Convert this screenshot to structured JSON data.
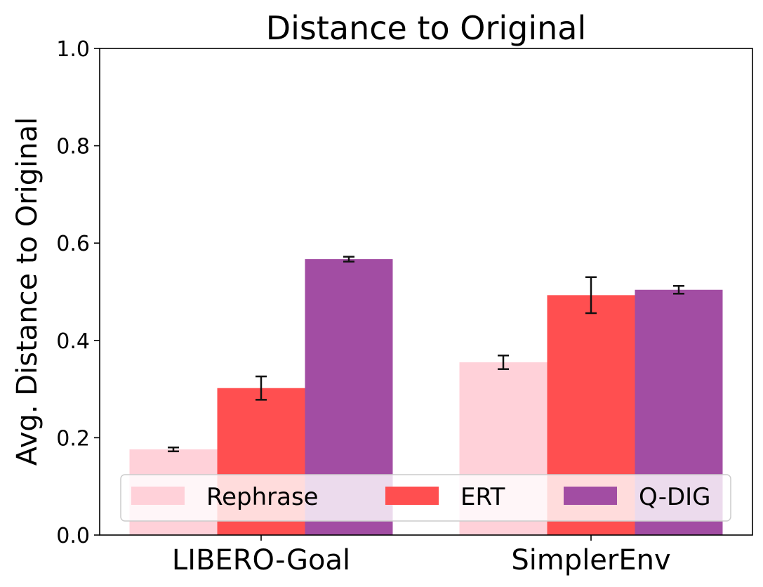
{
  "chart_data": {
    "type": "bar",
    "title": "Distance to Original",
    "xlabel": "",
    "ylabel": "Avg. Distance to Original",
    "categories": [
      "LIBERO-Goal",
      "SimplerEnv"
    ],
    "ylim": [
      0.0,
      1.0
    ],
    "yticks": [
      "0.0",
      "0.2",
      "0.4",
      "0.6",
      "0.8",
      "1.0"
    ],
    "grid": false,
    "legend_position": "bottom-center",
    "series": [
      {
        "name": "Rephrase",
        "color": "#ffd1d9",
        "values": [
          0.176,
          0.355
        ],
        "errors": [
          0.004,
          0.014
        ]
      },
      {
        "name": "ERT",
        "color": "#ff4f50",
        "values": [
          0.302,
          0.493
        ],
        "errors": [
          0.024,
          0.037
        ]
      },
      {
        "name": "Q-DIG",
        "color": "#a24da3",
        "values": [
          0.567,
          0.504
        ],
        "errors": [
          0.005,
          0.008
        ]
      }
    ]
  }
}
